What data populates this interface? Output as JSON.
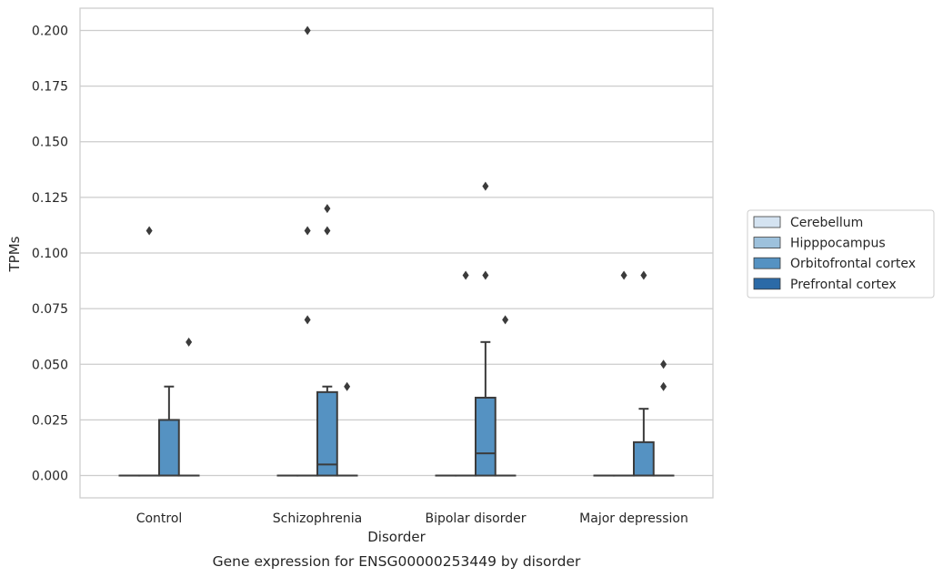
{
  "chart_data": {
    "type": "box",
    "xlabel": "Disorder",
    "ylabel": "TPMs",
    "caption": "Gene expression for ENSG00000253449 by disorder",
    "categories": [
      "Control",
      "Schizophrenia",
      "Bipolar disorder",
      "Major depression"
    ],
    "ylim": [
      -0.01,
      0.21
    ],
    "yticks": [
      "0.000",
      "0.025",
      "0.050",
      "0.075",
      "0.100",
      "0.125",
      "0.150",
      "0.175",
      "0.200"
    ],
    "grid": "horizontal",
    "legend_position": "right",
    "series": [
      {
        "name": "Cerebellum",
        "color": "#d4e3f1",
        "boxes": [
          {
            "q1": 0,
            "median": 0,
            "q3": 0,
            "whisker_low": 0,
            "whisker_high": 0,
            "outliers": []
          },
          {
            "q1": 0,
            "median": 0,
            "q3": 0,
            "whisker_low": 0,
            "whisker_high": 0,
            "outliers": []
          },
          {
            "q1": 0,
            "median": 0,
            "q3": 0,
            "whisker_low": 0,
            "whisker_high": 0,
            "outliers": []
          },
          {
            "q1": 0,
            "median": 0,
            "q3": 0,
            "whisker_low": 0,
            "whisker_high": 0,
            "outliers": []
          }
        ]
      },
      {
        "name": "Hipppocampus",
        "color": "#9dc1dc",
        "boxes": [
          {
            "q1": 0,
            "median": 0,
            "q3": 0,
            "whisker_low": 0,
            "whisker_high": 0,
            "outliers": [
              0.11
            ]
          },
          {
            "q1": 0,
            "median": 0,
            "q3": 0,
            "whisker_low": 0,
            "whisker_high": 0,
            "outliers": [
              0.2,
              0.11,
              0.07
            ]
          },
          {
            "q1": 0,
            "median": 0,
            "q3": 0,
            "whisker_low": 0,
            "whisker_high": 0,
            "outliers": [
              0.09
            ]
          },
          {
            "q1": 0,
            "median": 0,
            "q3": 0,
            "whisker_low": 0,
            "whisker_high": 0,
            "outliers": [
              0.09
            ]
          }
        ]
      },
      {
        "name": "Orbitofrontal cortex",
        "color": "#5592c2",
        "boxes": [
          {
            "q1": 0,
            "median": 0,
            "q3": 0.025,
            "whisker_low": 0,
            "whisker_high": 0.04,
            "outliers": []
          },
          {
            "q1": 0,
            "median": 0.005,
            "q3": 0.0375,
            "whisker_low": 0,
            "whisker_high": 0.04,
            "outliers": [
              0.12,
              0.11
            ]
          },
          {
            "q1": 0,
            "median": 0.01,
            "q3": 0.035,
            "whisker_low": 0,
            "whisker_high": 0.06,
            "outliers": [
              0.13,
              0.09
            ]
          },
          {
            "q1": 0,
            "median": 0,
            "q3": 0.015,
            "whisker_low": 0,
            "whisker_high": 0.03,
            "outliers": [
              0.09
            ]
          }
        ]
      },
      {
        "name": "Prefrontal cortex",
        "color": "#2b6aa7",
        "boxes": [
          {
            "q1": 0,
            "median": 0,
            "q3": 0,
            "whisker_low": 0,
            "whisker_high": 0,
            "outliers": [
              0.06
            ]
          },
          {
            "q1": 0,
            "median": 0,
            "q3": 0,
            "whisker_low": 0,
            "whisker_high": 0,
            "outliers": [
              0.04
            ]
          },
          {
            "q1": 0,
            "median": 0,
            "q3": 0,
            "whisker_low": 0,
            "whisker_high": 0,
            "outliers": [
              0.07
            ]
          },
          {
            "q1": 0,
            "median": 0,
            "q3": 0,
            "whisker_low": 0,
            "whisker_high": 0,
            "outliers": [
              0.05,
              0.04
            ]
          }
        ]
      }
    ]
  }
}
